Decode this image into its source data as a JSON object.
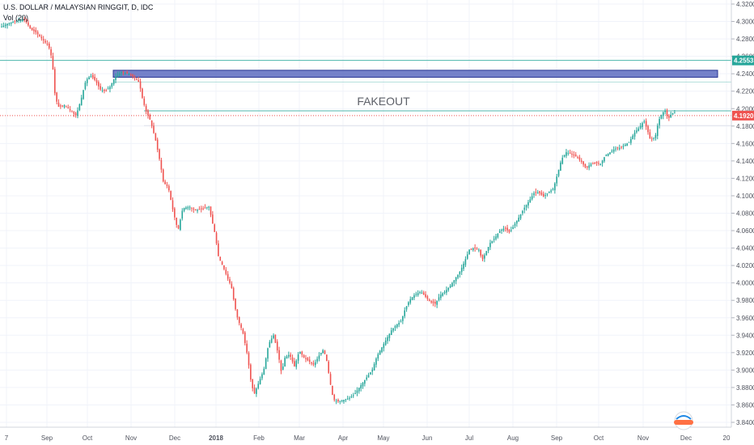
{
  "header": {
    "symbol_title": "U.S. DOLLAR / MALAYSIAN RINGGIT, D, IDC",
    "indicator": "Vol (20)"
  },
  "colors": {
    "up": "#26a69a",
    "down": "#ef5350",
    "grid": "#f0f3fa",
    "axis_text": "#50535e",
    "resistance_line": "#4db6ac",
    "zone_fill": "#5c6bc0",
    "zone_stroke": "#283593",
    "last_price_line": "#ef5350",
    "highlight_label": "#26a69a"
  },
  "chart_data": {
    "type": "candlestick",
    "title": "U.S. DOLLAR / MALAYSIAN RINGGIT, D, IDC",
    "y_axis": {
      "range": [
        3.832,
        4.328
      ],
      "ticks": [
        "4.3200",
        "4.3000",
        "4.2800",
        "4.2600",
        "4.2400",
        "4.2200",
        "4.2000",
        "4.1800",
        "4.1600",
        "4.1400",
        "4.1200",
        "4.1000",
        "4.0800",
        "4.0600",
        "4.0400",
        "4.0200",
        "4.0000",
        "3.9800",
        "3.9600",
        "3.9400",
        "3.9200",
        "3.9000",
        "3.8800",
        "3.8600",
        "3.8400"
      ],
      "highlight_labels": [
        {
          "price": 4.2553,
          "text": "4.2553"
        },
        {
          "price": 4.192,
          "text": "4.1920"
        }
      ]
    },
    "x_axis": {
      "labels": [
        "7",
        "Sep",
        "Oct",
        "Nov",
        "Dec",
        "2018",
        "Feb",
        "Mar",
        "Apr",
        "May",
        "Jun",
        "Jul",
        "Aug",
        "Sep",
        "Oct",
        "Nov",
        "Dec",
        "20"
      ]
    },
    "annotations": {
      "text": "FAKEOUT",
      "supply_zone": {
        "top": 4.244,
        "bottom": 4.236
      },
      "resistance": 4.1975,
      "upper_resistance": 4.2553,
      "last_price": 4.192,
      "upper_guide": 4.2305,
      "lower_guide": 4.1805
    },
    "path": [
      [
        0,
        4.293
      ],
      [
        8,
        4.297
      ],
      [
        20,
        4.301
      ],
      [
        30,
        4.303
      ],
      [
        38,
        4.291
      ],
      [
        44,
        4.288
      ],
      [
        52,
        4.28
      ],
      [
        60,
        4.272
      ],
      [
        64,
        4.258
      ],
      [
        66,
        4.24
      ],
      [
        68,
        4.215
      ],
      [
        72,
        4.202
      ],
      [
        80,
        4.204
      ],
      [
        88,
        4.197
      ],
      [
        94,
        4.192
      ],
      [
        100,
        4.21
      ],
      [
        106,
        4.232
      ],
      [
        112,
        4.238
      ],
      [
        118,
        4.232
      ],
      [
        124,
        4.222
      ],
      [
        130,
        4.22
      ],
      [
        136,
        4.225
      ],
      [
        142,
        4.236
      ],
      [
        150,
        4.242
      ],
      [
        158,
        4.24
      ],
      [
        166,
        4.236
      ],
      [
        172,
        4.23
      ],
      [
        176,
        4.212
      ],
      [
        180,
        4.198
      ],
      [
        186,
        4.186
      ],
      [
        192,
        4.165
      ],
      [
        198,
        4.138
      ],
      [
        202,
        4.115
      ],
      [
        208,
        4.11
      ],
      [
        214,
        4.082
      ],
      [
        220,
        4.06
      ],
      [
        226,
        4.086
      ],
      [
        234,
        4.087
      ],
      [
        242,
        4.083
      ],
      [
        250,
        4.085
      ],
      [
        258,
        4.088
      ],
      [
        262,
        4.072
      ],
      [
        266,
        4.055
      ],
      [
        270,
        4.03
      ],
      [
        276,
        4.018
      ],
      [
        282,
        4.004
      ],
      [
        286,
        3.996
      ],
      [
        290,
        3.974
      ],
      [
        294,
        3.958
      ],
      [
        300,
        3.944
      ],
      [
        306,
        3.916
      ],
      [
        310,
        3.888
      ],
      [
        314,
        3.872
      ],
      [
        320,
        3.886
      ],
      [
        326,
        3.9
      ],
      [
        332,
        3.93
      ],
      [
        338,
        3.94
      ],
      [
        344,
        3.918
      ],
      [
        348,
        3.896
      ],
      [
        352,
        3.914
      ],
      [
        358,
        3.918
      ],
      [
        364,
        3.904
      ],
      [
        370,
        3.922
      ],
      [
        376,
        3.914
      ],
      [
        382,
        3.91
      ],
      [
        388,
        3.906
      ],
      [
        394,
        3.916
      ],
      [
        400,
        3.924
      ],
      [
        404,
        3.91
      ],
      [
        408,
        3.886
      ],
      [
        412,
        3.866
      ],
      [
        418,
        3.864
      ],
      [
        426,
        3.866
      ],
      [
        432,
        3.868
      ],
      [
        438,
        3.872
      ],
      [
        444,
        3.88
      ],
      [
        452,
        3.89
      ],
      [
        460,
        3.9
      ],
      [
        466,
        3.916
      ],
      [
        472,
        3.926
      ],
      [
        478,
        3.936
      ],
      [
        484,
        3.946
      ],
      [
        490,
        3.952
      ],
      [
        496,
        3.956
      ],
      [
        500,
        3.968
      ],
      [
        506,
        3.98
      ],
      [
        512,
        3.986
      ],
      [
        520,
        3.99
      ],
      [
        526,
        3.984
      ],
      [
        532,
        3.978
      ],
      [
        538,
        3.976
      ],
      [
        544,
        3.986
      ],
      [
        550,
        3.99
      ],
      [
        556,
        3.996
      ],
      [
        562,
        4.004
      ],
      [
        568,
        4.012
      ],
      [
        574,
        4.024
      ],
      [
        580,
        4.038
      ],
      [
        586,
        4.04
      ],
      [
        592,
        4.038
      ],
      [
        596,
        4.026
      ],
      [
        600,
        4.034
      ],
      [
        606,
        4.046
      ],
      [
        612,
        4.052
      ],
      [
        618,
        4.06
      ],
      [
        624,
        4.063
      ],
      [
        630,
        4.058
      ],
      [
        636,
        4.067
      ],
      [
        642,
        4.076
      ],
      [
        648,
        4.086
      ],
      [
        654,
        4.094
      ],
      [
        660,
        4.103
      ],
      [
        666,
        4.104
      ],
      [
        672,
        4.099
      ],
      [
        678,
        4.104
      ],
      [
        684,
        4.108
      ],
      [
        690,
        4.128
      ],
      [
        694,
        4.142
      ],
      [
        700,
        4.15
      ],
      [
        706,
        4.148
      ],
      [
        712,
        4.145
      ],
      [
        718,
        4.14
      ],
      [
        724,
        4.132
      ],
      [
        730,
        4.136
      ],
      [
        736,
        4.138
      ],
      [
        742,
        4.136
      ],
      [
        748,
        4.146
      ],
      [
        754,
        4.15
      ],
      [
        760,
        4.154
      ],
      [
        766,
        4.155
      ],
      [
        772,
        4.158
      ],
      [
        778,
        4.162
      ],
      [
        784,
        4.172
      ],
      [
        790,
        4.178
      ],
      [
        796,
        4.186
      ],
      [
        800,
        4.176
      ],
      [
        804,
        4.164
      ],
      [
        810,
        4.168
      ],
      [
        814,
        4.186
      ],
      [
        818,
        4.194
      ],
      [
        822,
        4.198
      ],
      [
        826,
        4.188
      ],
      [
        830,
        4.194
      ],
      [
        836,
        4.196
      ]
    ]
  }
}
